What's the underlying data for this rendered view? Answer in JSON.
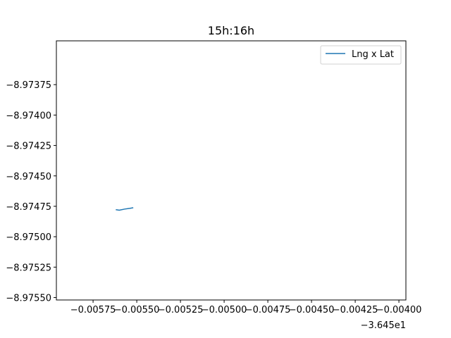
{
  "chart_data": {
    "type": "line",
    "title": "15h:16h",
    "xlabel": "",
    "ylabel": "",
    "x_offset_label": "−3.645e1",
    "xlim": [
      -0.00596,
      -0.00396
    ],
    "ylim": [
      -8.97552,
      -8.97339
    ],
    "x_ticks": [
      -0.00575,
      -0.0055,
      -0.00525,
      -0.005,
      -0.00475,
      -0.0045,
      -0.00425,
      -0.004
    ],
    "x_tick_labels": [
      "−0.00575",
      "−0.00550",
      "−0.00525",
      "−0.00500",
      "−0.00475",
      "−0.00450",
      "−0.00425",
      "−0.00400"
    ],
    "y_ticks": [
      -8.97375,
      -8.974,
      -8.97425,
      -8.9745,
      -8.97475,
      -8.975,
      -8.97525,
      -8.9755
    ],
    "y_tick_labels": [
      "−8.97375",
      "−8.97400",
      "−8.97425",
      "−8.97450",
      "−8.97475",
      "−8.97500",
      "−8.97525",
      "−8.97550"
    ],
    "grid": false,
    "legend_position": "top-right",
    "series": [
      {
        "name": "Lng x Lat",
        "color": "#1f77b4",
        "points": [
          {
            "x": -0.00562,
            "y": -8.974778
          },
          {
            "x": -0.0056,
            "y": -8.974782
          },
          {
            "x": -0.00557,
            "y": -8.974773
          },
          {
            "x": -0.00554,
            "y": -8.974767
          },
          {
            "x": -0.00552,
            "y": -8.974762
          }
        ]
      }
    ]
  }
}
